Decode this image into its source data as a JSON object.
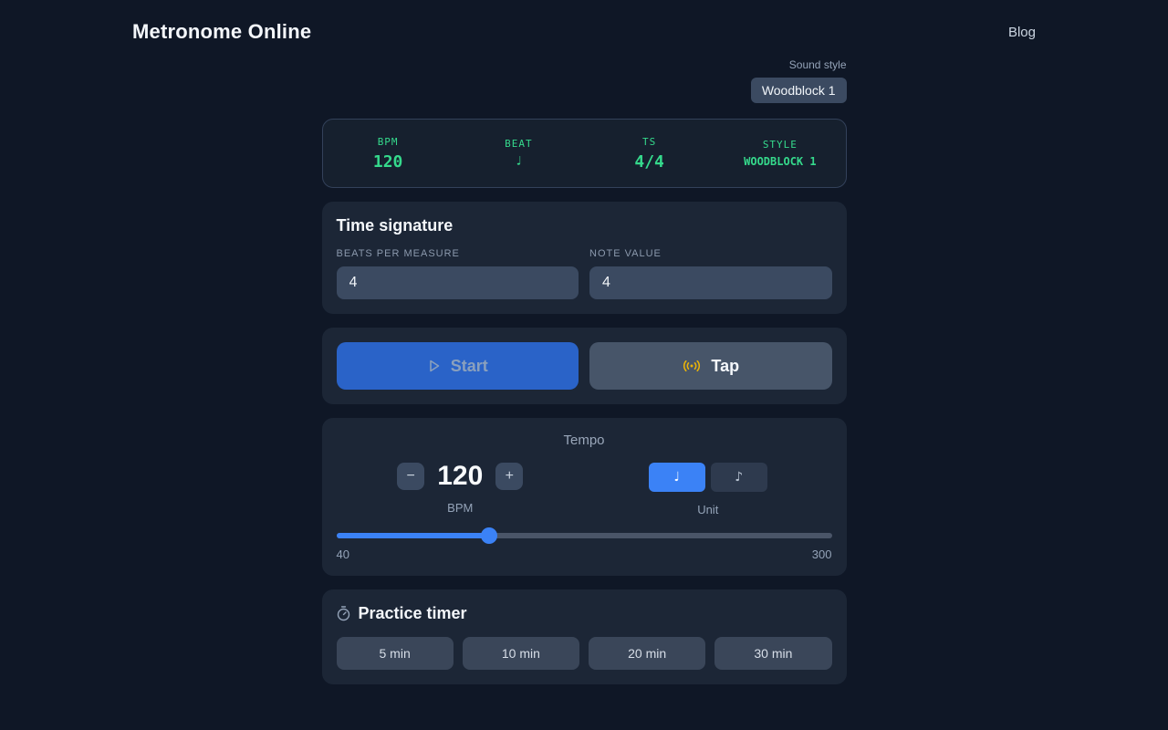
{
  "header": {
    "title": "Metronome Online",
    "blog_label": "Blog"
  },
  "sound_style": {
    "label": "Sound style",
    "value": "Woodblock 1"
  },
  "status": {
    "items": [
      {
        "label": "BPM",
        "value": "120"
      },
      {
        "label": "BEAT",
        "value": "♩"
      },
      {
        "label": "TS",
        "value": "4/4"
      },
      {
        "label": "STYLE",
        "value": "WOODBLOCK 1"
      }
    ]
  },
  "time_signature": {
    "title": "Time signature",
    "fields": [
      {
        "label": "BEATS PER MEASURE",
        "value": "4"
      },
      {
        "label": "NOTE VALUE",
        "value": "4"
      }
    ]
  },
  "transport": {
    "start_label": "Start",
    "tap_label": "Tap"
  },
  "tempo": {
    "title": "Tempo",
    "minus_label": "−",
    "plus_label": "+",
    "bpm_value": "120",
    "bpm_label": "BPM",
    "unit_label": "Unit",
    "units": [
      {
        "glyph": "♩",
        "selected": true
      },
      {
        "glyph": "♪",
        "selected": false
      }
    ],
    "slider": {
      "min_label": "40",
      "max_label": "300",
      "value": 120,
      "percent": 30.8
    }
  },
  "practice_timer": {
    "title": "Practice timer",
    "presets": [
      "5 min",
      "10 min",
      "20 min",
      "30 min"
    ]
  },
  "colors": {
    "page_bg": "#0f1726",
    "card_bg": "#1c2636",
    "status_green": "#35d98c",
    "accent_blue": "#3b82f6",
    "start_blue": "#2a63c8",
    "tap_yellow": "#eab308"
  }
}
